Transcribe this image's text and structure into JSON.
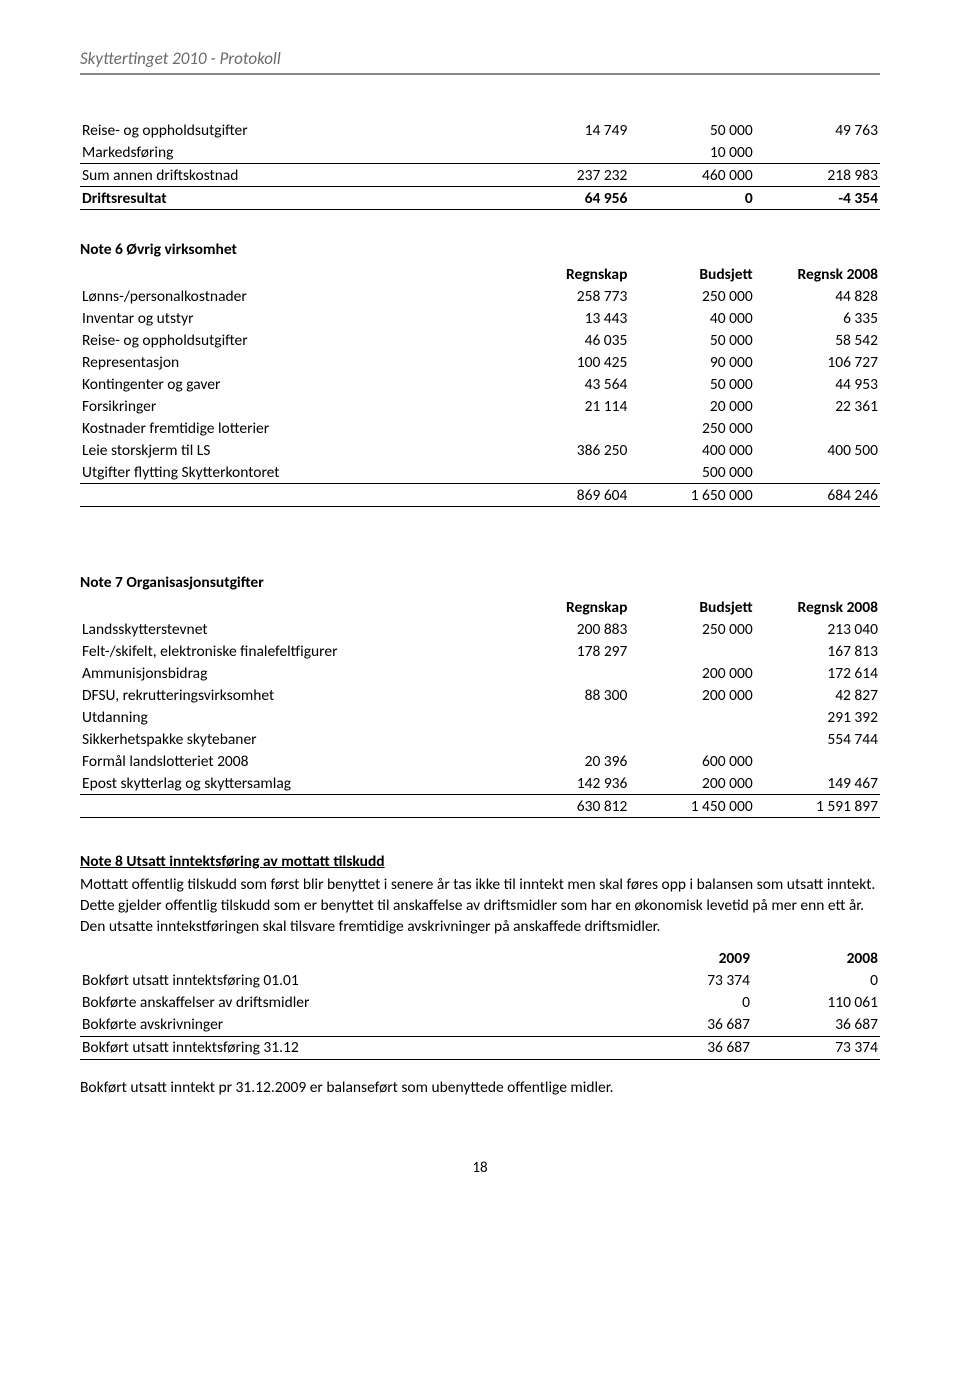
{
  "header": "Skyttertinget 2010 - Protokoll",
  "page_number": "18",
  "styling": {
    "font_family": "Calibri",
    "body_font_size_pt": 11.5,
    "header_color": "#6a6a6a",
    "header_border_color": "#8a8a8a",
    "text_color": "#000000",
    "background_color": "#ffffff",
    "rule_color": "#000000"
  },
  "table5_addl": {
    "rows": [
      {
        "label": "Reise- og oppholdsutgifter",
        "c1": "14 749",
        "c2": "50 000",
        "c3": "49 763"
      },
      {
        "label": "Markedsføring",
        "c1": "",
        "c2": "10 000",
        "c3": ""
      },
      {
        "label": "Sum annen driftskostnad",
        "c1": "237 232",
        "c2": "460 000",
        "c3": "218 983"
      },
      {
        "label": "Driftsresultat",
        "c1": "64 956",
        "c2": "0",
        "c3": "-4 354"
      }
    ]
  },
  "note6": {
    "title": "Note 6 Øvrig virksomhet",
    "head": {
      "c1": "Regnskap",
      "c2": "Budsjett",
      "c3": "Regnsk 2008"
    },
    "rows": [
      {
        "label": "Lønns-/personalkostnader",
        "c1": "258 773",
        "c2": "250 000",
        "c3": "44 828"
      },
      {
        "label": "Inventar og utstyr",
        "c1": "13 443",
        "c2": "40 000",
        "c3": "6 335"
      },
      {
        "label": "Reise- og oppholdsutgifter",
        "c1": "46 035",
        "c2": "50 000",
        "c3": "58 542"
      },
      {
        "label": "Representasjon",
        "c1": "100 425",
        "c2": "90 000",
        "c3": "106 727"
      },
      {
        "label": "Kontingenter og gaver",
        "c1": "43 564",
        "c2": "50 000",
        "c3": "44 953"
      },
      {
        "label": "Forsikringer",
        "c1": "21 114",
        "c2": "20 000",
        "c3": "22 361"
      },
      {
        "label": "Kostnader fremtidige lotterier",
        "c1": "",
        "c2": "250 000",
        "c3": ""
      },
      {
        "label": "Leie storskjerm til LS",
        "c1": "386 250",
        "c2": "400 000",
        "c3": "400 500"
      },
      {
        "label": "Utgifter flytting Skytterkontoret",
        "c1": "",
        "c2": "500 000",
        "c3": ""
      }
    ],
    "total": {
      "label": "",
      "c1": "869 604",
      "c2": "1 650 000",
      "c3": "684 246"
    }
  },
  "note7": {
    "title": "Note 7 Organisasjonsutgifter",
    "head": {
      "c1": "Regnskap",
      "c2": "Budsjett",
      "c3": "Regnsk 2008"
    },
    "rows": [
      {
        "label": "Landsskytterstevnet",
        "c1": "200 883",
        "c2": "250 000",
        "c3": "213 040"
      },
      {
        "label": "Felt-/skifelt, elektroniske finalefeltfigurer",
        "c1": "178 297",
        "c2": "",
        "c3": "167 813"
      },
      {
        "label": "Ammunisjonsbidrag",
        "c1": "",
        "c2": "200 000",
        "c3": "172 614"
      },
      {
        "label": "DFSU, rekrutteringsvirksomhet",
        "c1": "88 300",
        "c2": "200 000",
        "c3": "42 827"
      },
      {
        "label": "Utdanning",
        "c1": "",
        "c2": "",
        "c3": "291 392"
      },
      {
        "label": "Sikkerhetspakke skytebaner",
        "c1": "",
        "c2": "",
        "c3": "554 744"
      },
      {
        "label": "Formål landslotteriet 2008",
        "c1": "20 396",
        "c2": "600 000",
        "c3": ""
      },
      {
        "label": "Epost skytterlag og skyttersamlag",
        "c1": "142 936",
        "c2": "200 000",
        "c3": "149 467"
      }
    ],
    "total": {
      "label": "",
      "c1": "630 812",
      "c2": "1 450 000",
      "c3": "1 591 897"
    }
  },
  "note8": {
    "title": "Note 8 Utsatt inntektsføring av mottatt tilskudd",
    "para": "Mottatt offentlig tilskudd som først blir benyttet i senere år tas ikke til inntekt men skal føres opp i balansen som utsatt inntekt.  Dette gjelder offentlig tilskudd som er benyttet til anskaffelse av driftsmidler som har en økonomisk levetid på mer enn ett år. Den utsatte inntekstføringen skal tilsvare fremtidige avskrivninger på anskaffede driftsmidler.",
    "head": {
      "c1": "2009",
      "c2": "2008"
    },
    "rows": [
      {
        "label": "Bokført utsatt inntektsføring 01.01",
        "c1": "73 374",
        "c2": "0"
      },
      {
        "label": "Bokførte anskaffelser av driftsmidler",
        "c1": "0",
        "c2": "110 061"
      },
      {
        "label": "Bokførte avskrivninger",
        "c1": "36 687",
        "c2": "36 687"
      }
    ],
    "total": {
      "label": "Bokført utsatt inntektsføring 31.12",
      "c1": "36 687",
      "c2": "73 374"
    },
    "footer": "Bokført utsatt inntekt pr 31.12.2009 er balanseført som ubenyttede offentlige midler."
  }
}
